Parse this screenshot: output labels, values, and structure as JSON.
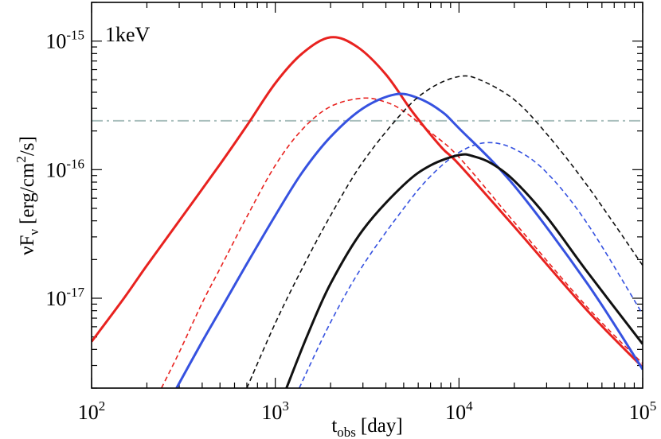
{
  "chart_data": {
    "type": "line",
    "title": "",
    "annotation": "1keV",
    "xlabel": {
      "main": "t",
      "sub": "obs",
      "unit": "[day]"
    },
    "ylabel": {
      "pre": "νF",
      "sub": "ν",
      "unit": "[erg/cm",
      "sup": "2",
      "unit_end": "/s]"
    },
    "xscale": "log",
    "yscale": "log",
    "xlim": [
      100,
      100000
    ],
    "ylim": [
      2e-18,
      2e-15
    ],
    "x_ticks": [
      {
        "value": 100,
        "base": "10",
        "exp": "2"
      },
      {
        "value": 1000,
        "base": "10",
        "exp": "3"
      },
      {
        "value": 10000,
        "base": "10",
        "exp": "4"
      },
      {
        "value": 100000,
        "base": "10",
        "exp": "5"
      }
    ],
    "y_ticks": [
      {
        "value": 1e-17,
        "base": "10",
        "exp": "-17"
      },
      {
        "value": 1e-16,
        "base": "10",
        "exp": "-16"
      },
      {
        "value": 1e-15,
        "base": "10",
        "exp": "-15"
      }
    ],
    "reference_line": {
      "y": 2.4e-16,
      "color": "#a9bfbd",
      "style": "dashdot"
    },
    "series": [
      {
        "name": "red-solid",
        "color": "#e8221f",
        "style": "solid",
        "width": 3,
        "x": [
          100,
          150,
          200,
          300,
          500,
          700,
          1000,
          1400,
          2000,
          2800,
          4000,
          5600,
          8000,
          10000,
          20000,
          50000,
          100000
        ],
        "y": [
          4.6e-18,
          1e-17,
          1.8e-17,
          4e-17,
          1.1e-16,
          2.2e-16,
          4.7e-16,
          8e-16,
          1.07e-15,
          9e-16,
          5.5e-16,
          2.8e-16,
          1.5e-16,
          1.1e-16,
          3.6e-17,
          8e-18,
          2.9e-18
        ]
      },
      {
        "name": "red-dashed",
        "color": "#e8221f",
        "style": "dashed",
        "width": 1.6,
        "x": [
          240,
          300,
          400,
          500,
          700,
          1000,
          1400,
          2000,
          3000,
          4000,
          5000,
          7000,
          10000,
          20000,
          50000,
          100000
        ],
        "y": [
          2e-18,
          3.8e-18,
          9.2e-18,
          1.7e-17,
          4.3e-17,
          1.08e-16,
          2.05e-16,
          3.1e-16,
          3.6e-16,
          3.35e-16,
          2.85e-16,
          1.95e-16,
          1.25e-16,
          3.9e-17,
          8.5e-18,
          3.1e-18
        ]
      },
      {
        "name": "blue-solid",
        "color": "#3652e0",
        "style": "solid",
        "width": 3,
        "x": [
          290,
          400,
          500,
          700,
          1000,
          1400,
          2000,
          3000,
          4500,
          6000,
          8000,
          10000,
          20000,
          50000,
          100000
        ],
        "y": [
          2e-18,
          4.6e-18,
          8e-18,
          1.85e-17,
          4.4e-17,
          9.5e-17,
          1.8e-16,
          3e-16,
          3.85e-16,
          3.6e-16,
          2.85e-16,
          2.1e-16,
          7.5e-17,
          1.3e-17,
          2.8e-18
        ]
      },
      {
        "name": "blue-dashed",
        "color": "#3652e0",
        "style": "dashed",
        "width": 1.6,
        "x": [
          1350,
          2000,
          3000,
          5000,
          7000,
          10000,
          14000,
          20000,
          30000,
          50000,
          100000
        ],
        "y": [
          2e-18,
          6.5e-18,
          1.8e-17,
          5e-17,
          8.9e-17,
          1.36e-16,
          1.62e-16,
          1.45e-16,
          9.5e-17,
          3.8e-17,
          7.5e-18
        ]
      },
      {
        "name": "black-solid",
        "color": "#111111",
        "style": "solid",
        "width": 3,
        "x": [
          1150,
          1500,
          2000,
          3000,
          5000,
          7000,
          10000,
          12000,
          15000,
          20000,
          30000,
          50000,
          100000
        ],
        "y": [
          2e-18,
          5.2e-18,
          1.3e-17,
          3.4e-17,
          7.6e-17,
          1.08e-16,
          1.3e-16,
          1.27e-16,
          1.12e-16,
          8.2e-17,
          4.3e-17,
          1.6e-17,
          4.4e-18
        ]
      },
      {
        "name": "black-dashed",
        "color": "#111111",
        "style": "dashed",
        "width": 1.6,
        "x": [
          700,
          1000,
          1400,
          2000,
          3000,
          5000,
          7000,
          10000,
          13000,
          20000,
          30000,
          50000,
          100000
        ],
        "y": [
          2e-18,
          6.4e-18,
          1.7e-17,
          4.4e-17,
          1.15e-16,
          2.85e-16,
          4.3e-16,
          5.3e-16,
          5e-16,
          3.5e-16,
          1.9e-16,
          7.5e-17,
          1.8e-17
        ]
      }
    ]
  }
}
